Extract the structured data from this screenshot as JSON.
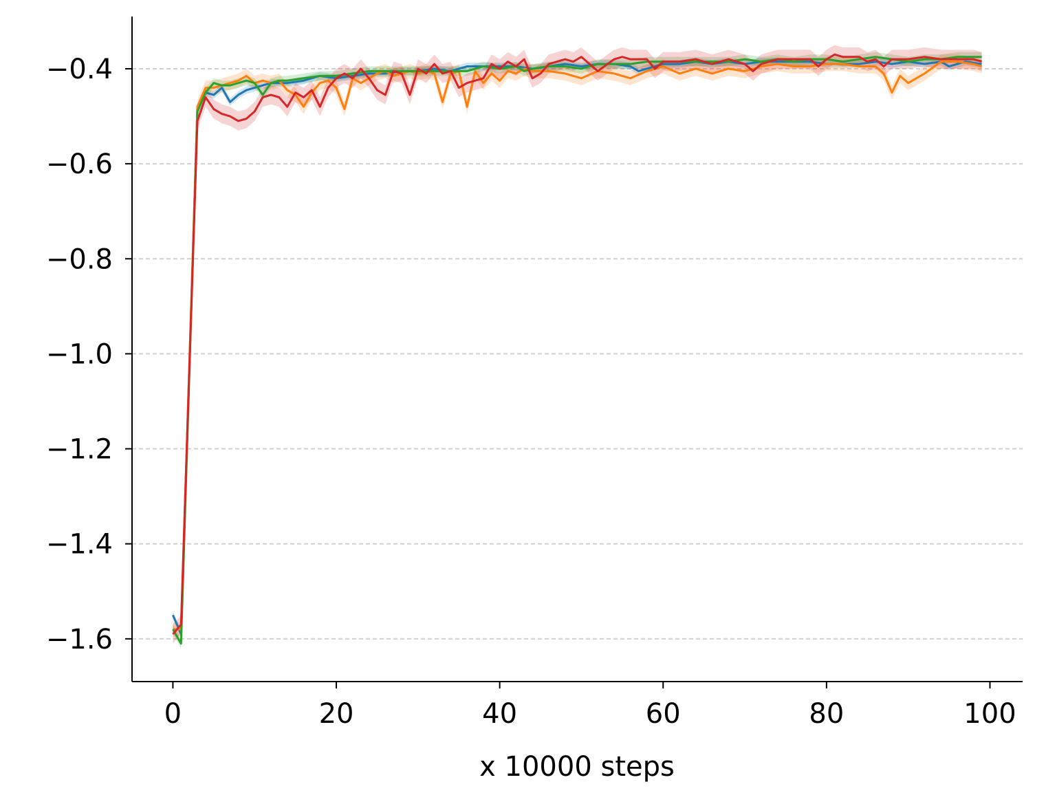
{
  "chart_data": {
    "type": "line",
    "title": "",
    "xlabel": "x 10000 steps",
    "ylabel": "",
    "xlim": [
      -5,
      104
    ],
    "ylim": [
      -1.69,
      -0.29
    ],
    "xticks": [
      0,
      20,
      40,
      60,
      80,
      100
    ],
    "yticks": [
      -0.4,
      -0.6,
      -0.8,
      -1.0,
      -1.2,
      -1.4,
      -1.6
    ],
    "xtick_labels": [
      "0",
      "20",
      "40",
      "60",
      "80",
      "100"
    ],
    "ytick_labels": [
      "−0.4",
      "−0.6",
      "−0.8",
      "−1.0",
      "−1.2",
      "−1.4",
      "−1.6"
    ],
    "grid": "horizontal dashed",
    "legend": "none",
    "shaded_band": true,
    "series": [
      {
        "color": "#1f77b4",
        "band": 0.008,
        "values": [
          [
            0,
            -1.55
          ],
          [
            1,
            -1.59
          ],
          [
            3,
            -0.48
          ],
          [
            4,
            -0.45
          ],
          [
            5,
            -0.455
          ],
          [
            6,
            -0.44
          ],
          [
            7,
            -0.47
          ],
          [
            8,
            -0.455
          ],
          [
            9,
            -0.445
          ],
          [
            10,
            -0.44
          ],
          [
            12,
            -0.43
          ],
          [
            14,
            -0.43
          ],
          [
            16,
            -0.425
          ],
          [
            18,
            -0.415
          ],
          [
            20,
            -0.42
          ],
          [
            22,
            -0.415
          ],
          [
            24,
            -0.41
          ],
          [
            26,
            -0.41
          ],
          [
            28,
            -0.405
          ],
          [
            30,
            -0.405
          ],
          [
            32,
            -0.4
          ],
          [
            34,
            -0.405
          ],
          [
            36,
            -0.395
          ],
          [
            38,
            -0.395
          ],
          [
            40,
            -0.395
          ],
          [
            42,
            -0.395
          ],
          [
            44,
            -0.4
          ],
          [
            46,
            -0.395
          ],
          [
            48,
            -0.39
          ],
          [
            50,
            -0.395
          ],
          [
            52,
            -0.39
          ],
          [
            54,
            -0.39
          ],
          [
            56,
            -0.395
          ],
          [
            57,
            -0.405
          ],
          [
            58,
            -0.4
          ],
          [
            60,
            -0.39
          ],
          [
            62,
            -0.39
          ],
          [
            64,
            -0.385
          ],
          [
            66,
            -0.39
          ],
          [
            68,
            -0.385
          ],
          [
            70,
            -0.39
          ],
          [
            72,
            -0.385
          ],
          [
            74,
            -0.385
          ],
          [
            76,
            -0.385
          ],
          [
            78,
            -0.385
          ],
          [
            80,
            -0.39
          ],
          [
            82,
            -0.39
          ],
          [
            84,
            -0.39
          ],
          [
            86,
            -0.385
          ],
          [
            88,
            -0.39
          ],
          [
            90,
            -0.385
          ],
          [
            92,
            -0.39
          ],
          [
            94,
            -0.385
          ],
          [
            95,
            -0.395
          ],
          [
            97,
            -0.385
          ],
          [
            99,
            -0.39
          ]
        ]
      },
      {
        "color": "#ff7f0e",
        "band": 0.015,
        "values": [
          [
            0,
            -1.58
          ],
          [
            1,
            -1.58
          ],
          [
            3,
            -0.48
          ],
          [
            4,
            -0.44
          ],
          [
            5,
            -0.44
          ],
          [
            6,
            -0.435
          ],
          [
            7,
            -0.43
          ],
          [
            8,
            -0.425
          ],
          [
            9,
            -0.415
          ],
          [
            10,
            -0.43
          ],
          [
            11,
            -0.425
          ],
          [
            12,
            -0.43
          ],
          [
            13,
            -0.425
          ],
          [
            14,
            -0.445
          ],
          [
            15,
            -0.455
          ],
          [
            16,
            -0.48
          ],
          [
            17,
            -0.45
          ],
          [
            18,
            -0.43
          ],
          [
            19,
            -0.425
          ],
          [
            20,
            -0.44
          ],
          [
            21,
            -0.485
          ],
          [
            22,
            -0.42
          ],
          [
            23,
            -0.43
          ],
          [
            24,
            -0.42
          ],
          [
            25,
            -0.41
          ],
          [
            26,
            -0.405
          ],
          [
            27,
            -0.415
          ],
          [
            28,
            -0.41
          ],
          [
            29,
            -0.405
          ],
          [
            30,
            -0.41
          ],
          [
            31,
            -0.405
          ],
          [
            32,
            -0.41
          ],
          [
            33,
            -0.47
          ],
          [
            34,
            -0.41
          ],
          [
            35,
            -0.405
          ],
          [
            36,
            -0.48
          ],
          [
            37,
            -0.405
          ],
          [
            38,
            -0.43
          ],
          [
            39,
            -0.41
          ],
          [
            40,
            -0.425
          ],
          [
            41,
            -0.405
          ],
          [
            42,
            -0.41
          ],
          [
            43,
            -0.4
          ],
          [
            44,
            -0.405
          ],
          [
            46,
            -0.405
          ],
          [
            48,
            -0.41
          ],
          [
            50,
            -0.42
          ],
          [
            52,
            -0.405
          ],
          [
            54,
            -0.41
          ],
          [
            56,
            -0.42
          ],
          [
            58,
            -0.405
          ],
          [
            60,
            -0.395
          ],
          [
            62,
            -0.41
          ],
          [
            64,
            -0.4
          ],
          [
            66,
            -0.41
          ],
          [
            68,
            -0.4
          ],
          [
            70,
            -0.405
          ],
          [
            72,
            -0.395
          ],
          [
            74,
            -0.39
          ],
          [
            76,
            -0.395
          ],
          [
            78,
            -0.395
          ],
          [
            80,
            -0.39
          ],
          [
            82,
            -0.39
          ],
          [
            84,
            -0.395
          ],
          [
            86,
            -0.395
          ],
          [
            87,
            -0.41
          ],
          [
            88,
            -0.45
          ],
          [
            89,
            -0.415
          ],
          [
            90,
            -0.43
          ],
          [
            92,
            -0.41
          ],
          [
            94,
            -0.385
          ],
          [
            96,
            -0.385
          ],
          [
            98,
            -0.39
          ],
          [
            99,
            -0.395
          ]
        ]
      },
      {
        "color": "#2ca02c",
        "band": 0.01,
        "values": [
          [
            0,
            -1.58
          ],
          [
            1,
            -1.61
          ],
          [
            3,
            -0.49
          ],
          [
            4,
            -0.45
          ],
          [
            5,
            -0.43
          ],
          [
            6,
            -0.435
          ],
          [
            7,
            -0.435
          ],
          [
            8,
            -0.43
          ],
          [
            9,
            -0.425
          ],
          [
            10,
            -0.43
          ],
          [
            11,
            -0.455
          ],
          [
            12,
            -0.43
          ],
          [
            13,
            -0.425
          ],
          [
            14,
            -0.425
          ],
          [
            16,
            -0.42
          ],
          [
            18,
            -0.415
          ],
          [
            20,
            -0.415
          ],
          [
            22,
            -0.41
          ],
          [
            24,
            -0.405
          ],
          [
            26,
            -0.405
          ],
          [
            28,
            -0.405
          ],
          [
            30,
            -0.405
          ],
          [
            32,
            -0.405
          ],
          [
            34,
            -0.405
          ],
          [
            36,
            -0.405
          ],
          [
            38,
            -0.395
          ],
          [
            40,
            -0.4
          ],
          [
            42,
            -0.395
          ],
          [
            43,
            -0.405
          ],
          [
            44,
            -0.4
          ],
          [
            46,
            -0.395
          ],
          [
            48,
            -0.395
          ],
          [
            50,
            -0.4
          ],
          [
            52,
            -0.39
          ],
          [
            54,
            -0.39
          ],
          [
            56,
            -0.39
          ],
          [
            58,
            -0.385
          ],
          [
            60,
            -0.385
          ],
          [
            62,
            -0.385
          ],
          [
            64,
            -0.385
          ],
          [
            66,
            -0.385
          ],
          [
            68,
            -0.385
          ],
          [
            70,
            -0.38
          ],
          [
            72,
            -0.385
          ],
          [
            74,
            -0.38
          ],
          [
            76,
            -0.385
          ],
          [
            78,
            -0.38
          ],
          [
            80,
            -0.38
          ],
          [
            82,
            -0.385
          ],
          [
            84,
            -0.38
          ],
          [
            86,
            -0.375
          ],
          [
            88,
            -0.38
          ],
          [
            90,
            -0.385
          ],
          [
            92,
            -0.38
          ],
          [
            94,
            -0.38
          ],
          [
            96,
            -0.375
          ],
          [
            98,
            -0.375
          ],
          [
            99,
            -0.375
          ]
        ]
      },
      {
        "color": "#d62728",
        "band": 0.02,
        "values": [
          [
            0,
            -1.59
          ],
          [
            1,
            -1.57
          ],
          [
            3,
            -0.51
          ],
          [
            4,
            -0.46
          ],
          [
            5,
            -0.485
          ],
          [
            6,
            -0.495
          ],
          [
            7,
            -0.5
          ],
          [
            8,
            -0.51
          ],
          [
            9,
            -0.505
          ],
          [
            10,
            -0.49
          ],
          [
            11,
            -0.46
          ],
          [
            12,
            -0.455
          ],
          [
            13,
            -0.46
          ],
          [
            14,
            -0.48
          ],
          [
            15,
            -0.45
          ],
          [
            16,
            -0.46
          ],
          [
            17,
            -0.445
          ],
          [
            18,
            -0.48
          ],
          [
            19,
            -0.44
          ],
          [
            20,
            -0.42
          ],
          [
            21,
            -0.41
          ],
          [
            22,
            -0.42
          ],
          [
            23,
            -0.4
          ],
          [
            24,
            -0.42
          ],
          [
            25,
            -0.445
          ],
          [
            26,
            -0.455
          ],
          [
            27,
            -0.405
          ],
          [
            28,
            -0.41
          ],
          [
            29,
            -0.455
          ],
          [
            30,
            -0.4
          ],
          [
            31,
            -0.41
          ],
          [
            32,
            -0.39
          ],
          [
            33,
            -0.41
          ],
          [
            34,
            -0.405
          ],
          [
            35,
            -0.44
          ],
          [
            36,
            -0.43
          ],
          [
            37,
            -0.425
          ],
          [
            38,
            -0.42
          ],
          [
            39,
            -0.39
          ],
          [
            40,
            -0.4
          ],
          [
            41,
            -0.385
          ],
          [
            42,
            -0.395
          ],
          [
            43,
            -0.38
          ],
          [
            44,
            -0.42
          ],
          [
            45,
            -0.41
          ],
          [
            46,
            -0.39
          ],
          [
            48,
            -0.38
          ],
          [
            49,
            -0.385
          ],
          [
            50,
            -0.375
          ],
          [
            52,
            -0.405
          ],
          [
            54,
            -0.38
          ],
          [
            55,
            -0.375
          ],
          [
            56,
            -0.38
          ],
          [
            58,
            -0.38
          ],
          [
            59,
            -0.4
          ],
          [
            60,
            -0.385
          ],
          [
            62,
            -0.385
          ],
          [
            64,
            -0.38
          ],
          [
            66,
            -0.39
          ],
          [
            68,
            -0.38
          ],
          [
            70,
            -0.39
          ],
          [
            71,
            -0.405
          ],
          [
            72,
            -0.39
          ],
          [
            74,
            -0.38
          ],
          [
            76,
            -0.38
          ],
          [
            78,
            -0.38
          ],
          [
            79,
            -0.395
          ],
          [
            80,
            -0.38
          ],
          [
            81,
            -0.37
          ],
          [
            82,
            -0.375
          ],
          [
            84,
            -0.375
          ],
          [
            85,
            -0.385
          ],
          [
            86,
            -0.38
          ],
          [
            87,
            -0.395
          ],
          [
            88,
            -0.38
          ],
          [
            90,
            -0.38
          ],
          [
            92,
            -0.375
          ],
          [
            94,
            -0.38
          ],
          [
            96,
            -0.38
          ],
          [
            98,
            -0.38
          ],
          [
            99,
            -0.385
          ]
        ]
      }
    ]
  }
}
